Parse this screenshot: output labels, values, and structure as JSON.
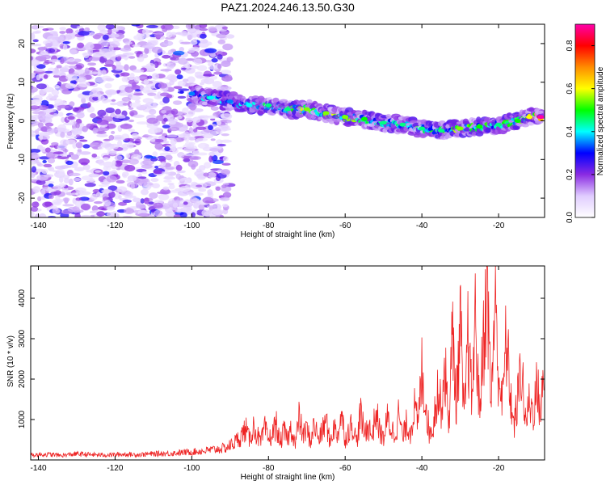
{
  "title": "PAZ1.2024.246.13.50.G30",
  "chart_data": [
    {
      "type": "heatmap",
      "xlabel": "Height of straight line (km)",
      "ylabel": "Frequency (Hz)",
      "xlim": [
        -142,
        -8
      ],
      "ylim": [
        -25,
        25
      ],
      "x_ticks": [
        -140,
        -120,
        -100,
        -80,
        -60,
        -40,
        -20
      ],
      "y_ticks": [
        -20,
        -10,
        0,
        10,
        20
      ],
      "colorbar": {
        "label": "Normalized spectral amplitude",
        "range": [
          0.0,
          0.9
        ],
        "ticks": [
          0.0,
          0.2,
          0.4,
          0.6,
          0.8
        ],
        "colors": [
          "#ffffff",
          "#e0ccff",
          "#8a2be2",
          "#0000ff",
          "#00ffff",
          "#00ff00",
          "#ffff00",
          "#ff8c00",
          "#ff0000",
          "#ff00aa"
        ]
      },
      "signal_track": [
        {
          "x": -100,
          "freq": 7.0,
          "amp": 0.35
        },
        {
          "x": -95,
          "freq": 6.0,
          "amp": 0.4
        },
        {
          "x": -90,
          "freq": 5.0,
          "amp": 0.35
        },
        {
          "x": -85,
          "freq": 4.0,
          "amp": 0.4
        },
        {
          "x": -80,
          "freq": 4.0,
          "amp": 0.45
        },
        {
          "x": -75,
          "freq": 3.0,
          "amp": 0.45
        },
        {
          "x": -70,
          "freq": 3.0,
          "amp": 0.55
        },
        {
          "x": -65,
          "freq": 2.0,
          "amp": 0.55
        },
        {
          "x": -60,
          "freq": 1.0,
          "amp": 0.55
        },
        {
          "x": -55,
          "freq": 0.5,
          "amp": 0.5
        },
        {
          "x": -50,
          "freq": -0.5,
          "amp": 0.45
        },
        {
          "x": -45,
          "freq": -1.0,
          "amp": 0.45
        },
        {
          "x": -40,
          "freq": -2.0,
          "amp": 0.45
        },
        {
          "x": -35,
          "freq": -2.5,
          "amp": 0.45
        },
        {
          "x": -30,
          "freq": -2.0,
          "amp": 0.55
        },
        {
          "x": -25,
          "freq": -1.5,
          "amp": 0.5
        },
        {
          "x": -20,
          "freq": -1.0,
          "amp": 0.45
        },
        {
          "x": -15,
          "freq": 0.0,
          "amp": 0.5
        },
        {
          "x": -12,
          "freq": 1.0,
          "amp": 0.6
        },
        {
          "x": -9,
          "freq": 1.0,
          "amp": 0.9
        }
      ],
      "noise_region_x": [
        -142,
        -90
      ]
    },
    {
      "type": "line",
      "xlabel": "Height of straight line (km)",
      "ylabel": "SNR (10 * v/v)",
      "xlim": [
        -142,
        -8
      ],
      "ylim": [
        0,
        4800
      ],
      "x_ticks": [
        -140,
        -120,
        -100,
        -80,
        -60,
        -40,
        -20
      ],
      "y_ticks": [
        1000,
        2000,
        3000,
        4000
      ],
      "series": [
        {
          "color": "#ee2222",
          "x": [
            -142,
            -138,
            -134,
            -130,
            -126,
            -122,
            -118,
            -114,
            -110,
            -106,
            -103,
            -100,
            -97,
            -94,
            -91,
            -89,
            -87,
            -86,
            -85,
            -84,
            -83,
            -82,
            -81,
            -80,
            -79,
            -78,
            -77,
            -76,
            -75,
            -74,
            -73,
            -72,
            -71,
            -70,
            -69,
            -68,
            -67,
            -66,
            -65,
            -64,
            -63,
            -62,
            -61,
            -60,
            -59,
            -58,
            -57,
            -56,
            -55,
            -54,
            -53,
            -52,
            -51,
            -50,
            -49,
            -48,
            -47,
            -46,
            -45,
            -44,
            -43,
            -42,
            -41,
            -40,
            -39,
            -38,
            -37,
            -36,
            -35,
            -34,
            -33,
            -32,
            -31,
            -30,
            -29,
            -28,
            -27,
            -26,
            -25,
            -24,
            -23,
            -22,
            -21,
            -20,
            -19,
            -18,
            -17,
            -16,
            -15,
            -14,
            -13,
            -12,
            -11,
            -10,
            -9,
            -8
          ],
          "y": [
            120,
            140,
            110,
            150,
            130,
            120,
            140,
            130,
            150,
            160,
            180,
            200,
            220,
            260,
            300,
            420,
            600,
            780,
            500,
            820,
            640,
            420,
            780,
            500,
            620,
            900,
            400,
            700,
            520,
            800,
            380,
            1050,
            600,
            760,
            450,
            900,
            520,
            680,
            1000,
            420,
            820,
            600,
            1150,
            500,
            760,
            880,
            420,
            1150,
            640,
            880,
            560,
            1200,
            720,
            520,
            1000,
            780,
            640,
            1150,
            520,
            900,
            700,
            1300,
            850,
            2200,
            1400,
            620,
            900,
            1750,
            1300,
            2300,
            900,
            3100,
            1400,
            3400,
            900,
            3000,
            1500,
            3500,
            1200,
            2800,
            4800,
            1300,
            3900,
            2200,
            1400,
            3000,
            1700,
            800,
            1500,
            2400,
            900,
            1400,
            1200,
            1800,
            1200,
            2200
          ]
        }
      ]
    }
  ]
}
